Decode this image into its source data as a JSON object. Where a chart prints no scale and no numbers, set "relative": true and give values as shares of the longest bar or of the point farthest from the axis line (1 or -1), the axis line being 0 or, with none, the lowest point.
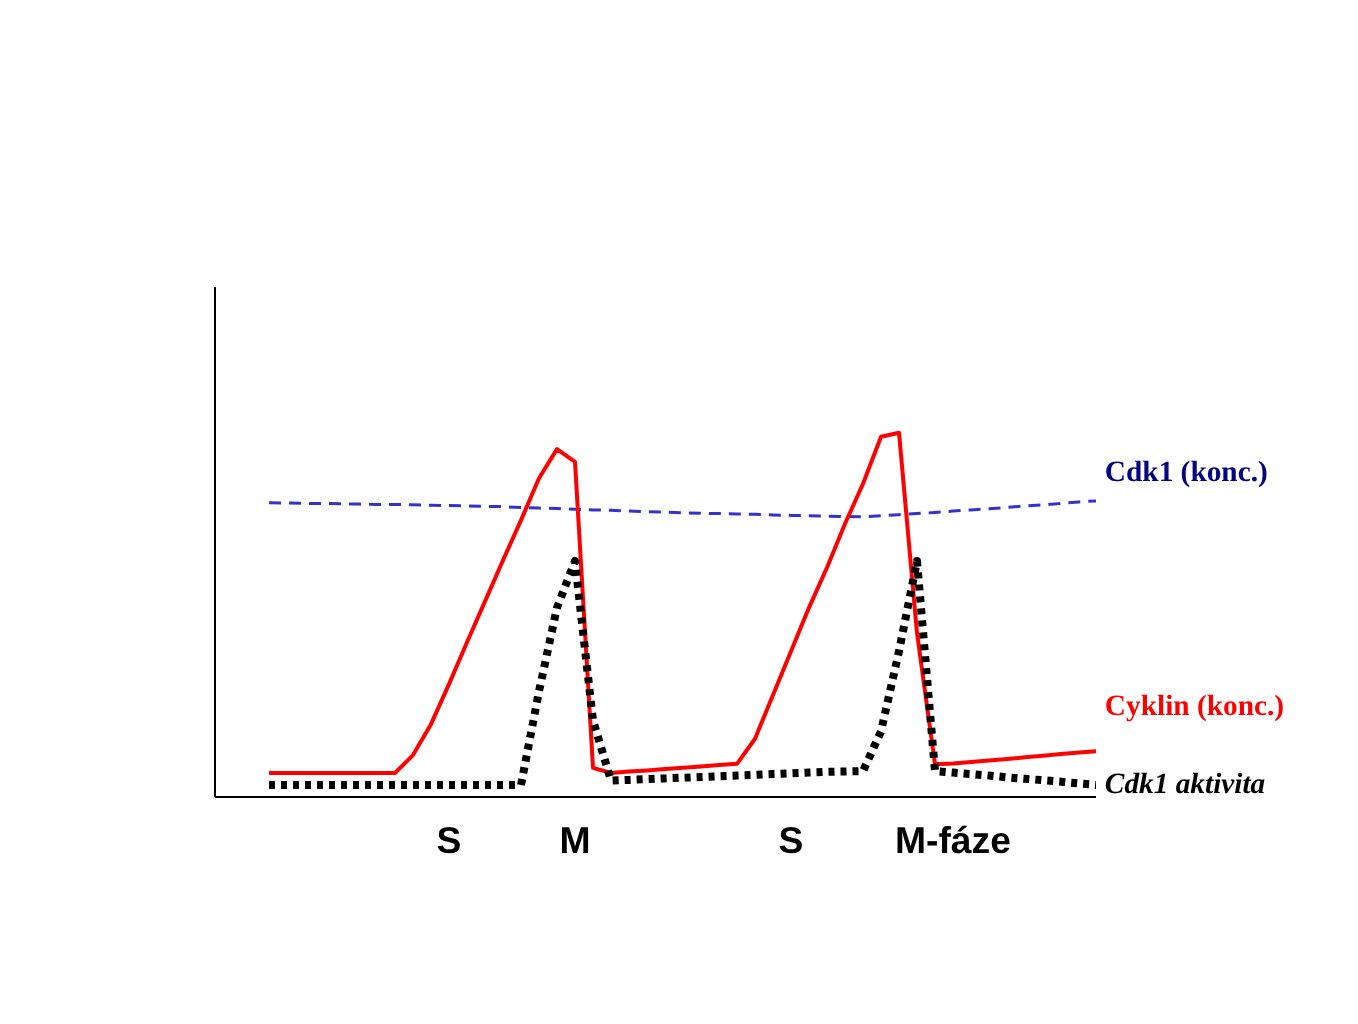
{
  "chart_data": {
    "type": "line",
    "relative": true,
    "grid": false,
    "marker": "none",
    "categories": [
      null,
      null,
      null,
      null,
      null,
      null,
      null,
      null,
      null,
      null,
      null,
      null,
      null,
      "S",
      null,
      null,
      null,
      null,
      null,
      null,
      "M",
      null,
      null,
      null,
      null,
      null,
      null,
      null,
      null,
      null,
      null,
      null,
      "S",
      null,
      null,
      null,
      null,
      null,
      null,
      null,
      null,
      "M-fáze",
      null,
      null,
      null,
      null,
      null,
      null,
      null,
      null
    ],
    "series": [
      {
        "name": "Cdk1 (konc.)",
        "color": "#3333cc",
        "line_style": "dashed",
        "values": [
          null,
          null,
          null,
          0.808,
          0.807,
          0.806,
          0.806,
          0.805,
          0.804,
          0.803,
          0.803,
          0.802,
          0.801,
          0.8,
          0.799,
          0.798,
          0.797,
          0.795,
          0.793,
          0.792,
          0.79,
          0.788,
          0.787,
          0.785,
          0.783,
          0.782,
          0.78,
          0.779,
          0.778,
          0.777,
          0.776,
          0.774,
          0.773,
          0.772,
          0.771,
          0.77,
          0.769,
          0.772,
          0.775,
          0.778,
          0.781,
          0.785,
          0.788,
          0.791,
          0.795,
          0.799,
          0.802,
          0.806,
          0.81,
          0.813
        ]
      },
      {
        "name": "Cyklin (konc.)",
        "color": "#ff0000",
        "line_style": "solid",
        "values": [
          null,
          null,
          null,
          0.066,
          0.066,
          0.066,
          0.066,
          0.066,
          0.066,
          0.066,
          0.066,
          0.115,
          0.2,
          0.31,
          0.425,
          0.537,
          0.65,
          0.76,
          0.875,
          0.955,
          0.92,
          0.08,
          0.066,
          0.07,
          0.073,
          0.077,
          0.08,
          0.084,
          0.088,
          0.091,
          0.16,
          0.28,
          0.4,
          0.52,
          0.63,
          0.75,
          0.86,
          0.989,
          1.0,
          0.45,
          0.09,
          0.092,
          0.096,
          0.1,
          0.104,
          0.109,
          0.113,
          0.118,
          0.122,
          0.126
        ]
      },
      {
        "name": "Cdk1 aktivita",
        "color": "#000000",
        "line_style": "dotted",
        "values": [
          null,
          null,
          null,
          0.033,
          0.033,
          0.033,
          0.033,
          0.033,
          0.033,
          0.033,
          0.033,
          0.033,
          0.033,
          0.033,
          0.033,
          0.033,
          0.033,
          0.033,
          0.29,
          0.52,
          0.648,
          0.21,
          0.045,
          0.047,
          0.049,
          0.051,
          0.053,
          0.055,
          0.057,
          0.059,
          0.061,
          0.063,
          0.065,
          0.067,
          0.069,
          0.07,
          0.071,
          0.18,
          0.4,
          0.648,
          0.071,
          0.067,
          0.063,
          0.059,
          0.054,
          0.05,
          0.046,
          0.042,
          0.037,
          0.033
        ]
      }
    ]
  }
}
